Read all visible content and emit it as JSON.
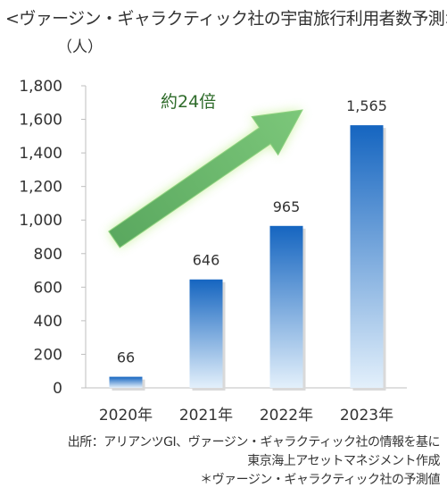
{
  "title": "<ヴァージン・ギャラクティック社の宇宙旅行利用者数予測>",
  "chart_data": {
    "type": "bar",
    "unit_label": "（人）",
    "categories": [
      "2020年",
      "2021年",
      "2022年",
      "2023年"
    ],
    "values": [
      66,
      646,
      965,
      1565
    ],
    "value_labels": [
      "66",
      "646",
      "965",
      "1,565"
    ],
    "y_ticks": [
      "0",
      "200",
      "400",
      "600",
      "800",
      "1,000",
      "1,200",
      "1,400",
      "1,600",
      "1,800"
    ],
    "ylim": [
      0,
      1800
    ],
    "annotation": "約24倍",
    "colors": {
      "bar_top": "#1565c0",
      "bar_bottom": "#e3f0fb",
      "arrow": "#63b268",
      "arrow_glow": "#c8f09a",
      "annotation": "#2e6b2a"
    }
  },
  "source_lines": [
    "出所：アリアンツGI、ヴァージン・ギャラクティック社の情報を基に",
    "東京海上アセットマネジメント作成",
    "＊ヴァージン・ギャラクティック社の予測値"
  ]
}
